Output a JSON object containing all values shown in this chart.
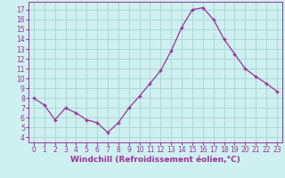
{
  "x": [
    0,
    1,
    2,
    3,
    4,
    5,
    6,
    7,
    8,
    9,
    10,
    11,
    12,
    13,
    14,
    15,
    16,
    17,
    18,
    19,
    20,
    21,
    22,
    23
  ],
  "y": [
    8.0,
    7.3,
    5.8,
    7.0,
    6.5,
    5.8,
    5.5,
    4.5,
    5.5,
    7.0,
    8.2,
    9.5,
    10.8,
    12.8,
    15.2,
    17.0,
    17.2,
    16.0,
    14.0,
    12.5,
    11.0,
    10.2,
    9.5,
    8.7
  ],
  "line_color": "#993399",
  "marker_color": "#993399",
  "bg_color": "#cff0f0",
  "grid_color": "#aad8d8",
  "xlabel": "Windchill (Refroidissement éolien,°C)",
  "xlim": [
    -0.5,
    23.5
  ],
  "ylim": [
    3.5,
    17.8
  ],
  "yticks": [
    4,
    5,
    6,
    7,
    8,
    9,
    10,
    11,
    12,
    13,
    14,
    15,
    16,
    17
  ],
  "xticks": [
    0,
    1,
    2,
    3,
    4,
    5,
    6,
    7,
    8,
    9,
    10,
    11,
    12,
    13,
    14,
    15,
    16,
    17,
    18,
    19,
    20,
    21,
    22,
    23
  ],
  "tick_color": "#993399",
  "font_size": 5.5,
  "xlabel_fontsize": 6.5
}
